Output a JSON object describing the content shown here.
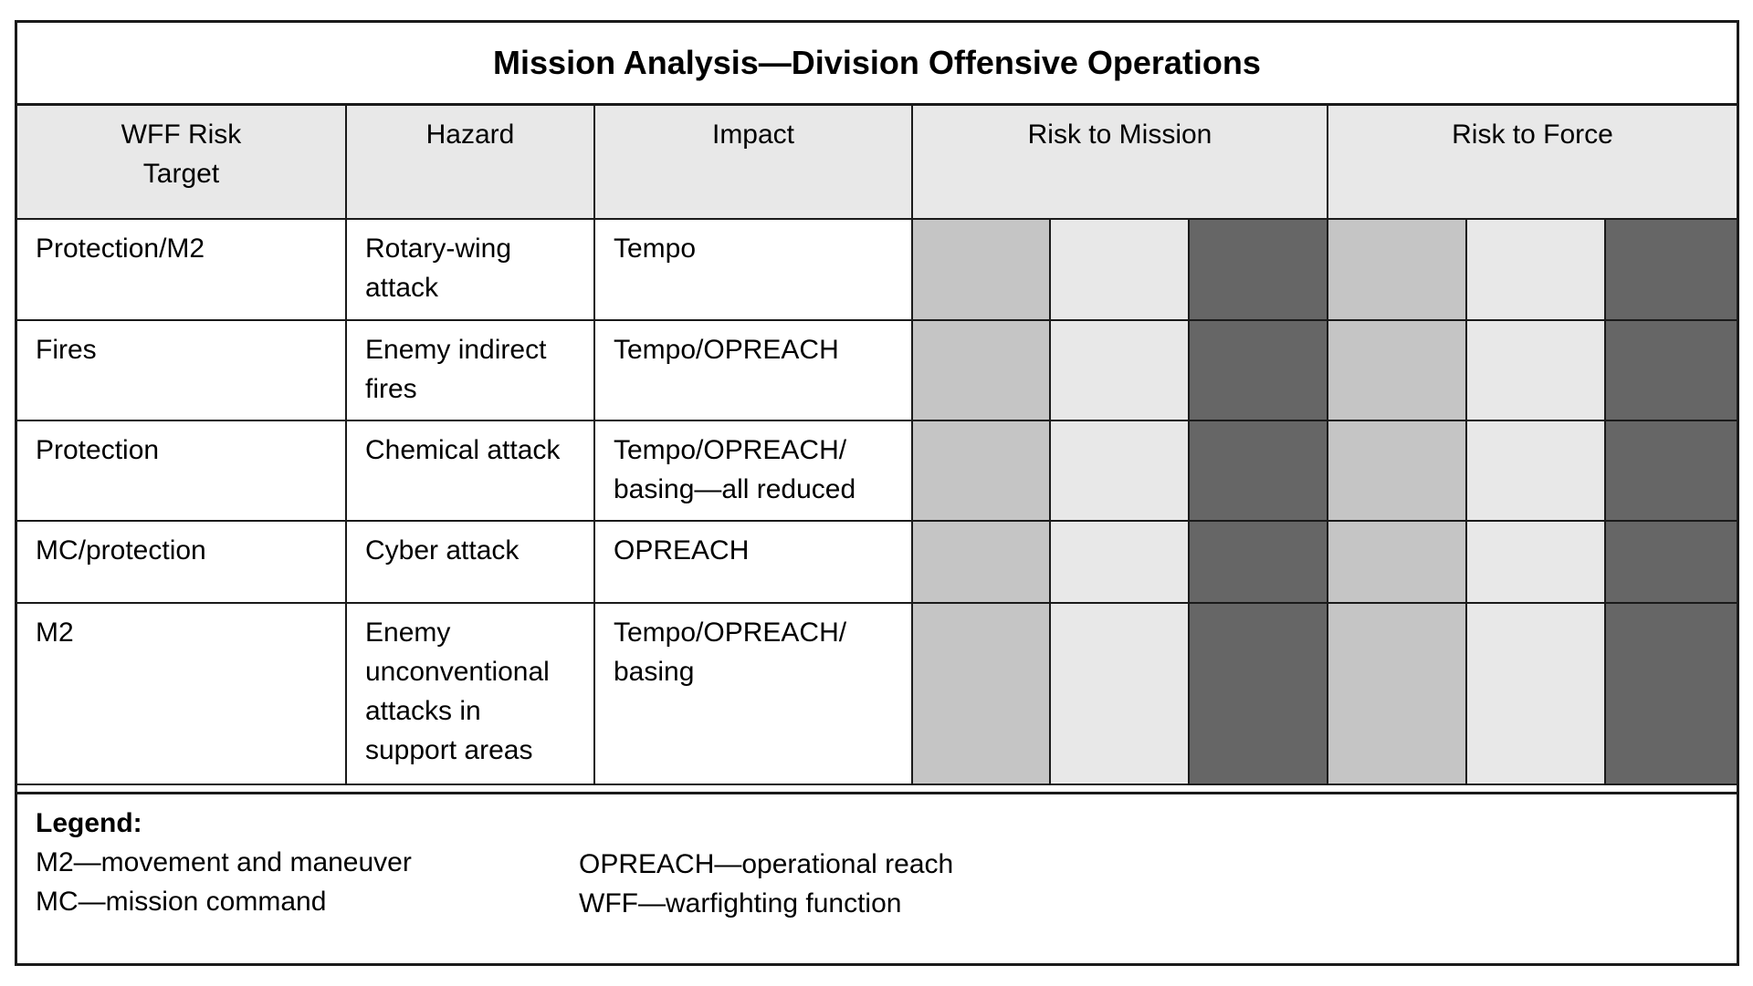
{
  "title": "Mission Analysis—Division Offensive Operations",
  "columns": {
    "wff_risk_target": "WFF Risk Target",
    "hazard": "Hazard",
    "impact": "Impact",
    "risk_to_mission": "Risk to Mission",
    "risk_to_force": "Risk to Force"
  },
  "rows": [
    {
      "wff": "Protection/M2",
      "hazard": "Rotary-wing attack",
      "impact": "Tempo"
    },
    {
      "wff": "Fires",
      "hazard": "Enemy indirect fires",
      "impact": "Tempo/OPREACH"
    },
    {
      "wff": "Protection",
      "hazard": "Chemical attack",
      "impact": "Tempo/OPREACH/ basing—all reduced"
    },
    {
      "wff": "MC/protection",
      "hazard": "Cyber attack",
      "impact": "OPREACH"
    },
    {
      "wff": "M2",
      "hazard": "Enemy unconventional attacks in support areas",
      "impact": "Tempo/OPREACH/ basing"
    }
  ],
  "risk_shading_colors": {
    "medium": "#c5c5c5",
    "low": "#e8e8e8",
    "high": "#666666"
  },
  "legend": {
    "title": "Legend:",
    "col1": [
      "M2—movement and maneuver",
      "MC—mission command"
    ],
    "col2": [
      "OPREACH—operational reach",
      "WFF—warfighting function"
    ]
  }
}
